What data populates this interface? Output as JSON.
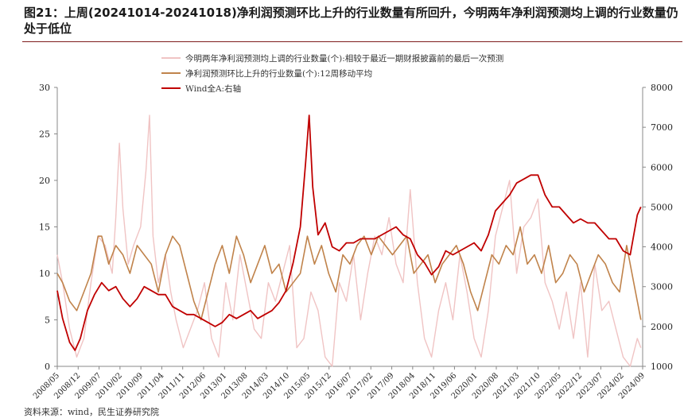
{
  "title": "图21：上周(20241014-20241018)净利润预测环比上升的行业数量有所回升，今明两年净利润预测均上调的行业数量仍处于低位",
  "source": "资料来源：wind，民生证券研究院",
  "chart_data": {
    "type": "line",
    "y_left": {
      "min": 0,
      "max": 30,
      "ticks": [
        0,
        5,
        10,
        15,
        20,
        25,
        30
      ]
    },
    "y_right": {
      "min": 1000,
      "max": 8000,
      "ticks": [
        1000,
        2000,
        3000,
        4000,
        5000,
        6000,
        7000,
        8000
      ]
    },
    "x_ticks": [
      "2008/05",
      "2008/12",
      "2009/07",
      "2010/02",
      "2010/09",
      "2011/04",
      "2011/11",
      "2012/06",
      "2013/01",
      "2013/08",
      "2014/03",
      "2014/10",
      "2015/05",
      "2015/12",
      "2016/07",
      "2017/02",
      "2017/09",
      "2018/04",
      "2018/11",
      "2019/06",
      "2020/01",
      "2020/08",
      "2021/03",
      "2021/10",
      "2022/05",
      "2022/12",
      "2023/07",
      "2024/02",
      "2024/09"
    ],
    "legend_placement": "top-center",
    "series": [
      {
        "name": "今明两年净利润预测均上调的行业数量(个):相较于最近一期财报披露前的最后一次预测",
        "axis": "left",
        "color": "#f0c4c4",
        "x": [
          2008.35,
          2008.5,
          2008.7,
          2008.9,
          2009.1,
          2009.3,
          2009.5,
          2009.7,
          2009.9,
          2010.0,
          2010.1,
          2010.2,
          2010.35,
          2010.5,
          2010.7,
          2010.85,
          2010.95,
          2011.05,
          2011.2,
          2011.4,
          2011.55,
          2011.7,
          2011.9,
          2012.1,
          2012.3,
          2012.5,
          2012.7,
          2012.9,
          2013.1,
          2013.3,
          2013.5,
          2013.7,
          2013.9,
          2014.1,
          2014.3,
          2014.5,
          2014.7,
          2014.9,
          2015.1,
          2015.3,
          2015.5,
          2015.7,
          2015.9,
          2016.1,
          2016.3,
          2016.5,
          2016.7,
          2016.9,
          2017.1,
          2017.3,
          2017.5,
          2017.7,
          2017.9,
          2018.1,
          2018.3,
          2018.5,
          2018.7,
          2018.9,
          2019.1,
          2019.3,
          2019.5,
          2019.7,
          2019.9,
          2020.1,
          2020.3,
          2020.5,
          2020.7,
          2020.9,
          2021.1,
          2021.3,
          2021.5,
          2021.7,
          2021.9,
          2022.1,
          2022.3,
          2022.5,
          2022.7,
          2022.9,
          2023.1,
          2023.3,
          2023.5,
          2023.7,
          2023.9,
          2024.1,
          2024.3,
          2024.5,
          2024.7,
          2024.8
        ],
        "y": [
          12,
          9,
          4,
          1,
          3,
          9,
          14,
          13,
          10,
          16,
          24,
          17,
          11,
          13,
          15,
          21,
          27,
          14,
          9,
          12,
          8,
          5,
          2,
          4,
          6,
          9,
          3,
          1,
          9,
          5,
          12,
          8,
          4,
          3,
          9,
          7,
          10,
          13,
          2,
          3,
          8,
          6,
          1,
          0,
          9,
          7,
          12,
          5,
          10,
          14,
          12,
          16,
          11,
          9,
          19,
          9,
          3,
          1,
          6,
          9,
          5,
          12,
          8,
          3,
          1,
          6,
          14,
          17,
          20,
          10,
          15,
          16,
          18,
          9,
          7,
          4,
          8,
          3,
          9,
          1,
          11,
          6,
          7,
          4,
          1,
          0,
          3,
          2
        ]
      },
      {
        "name": "净利润预测环比上升的行业数量(个):12周移动平均",
        "axis": "left",
        "color": "#c0834b",
        "x": [
          2008.35,
          2008.5,
          2008.7,
          2008.9,
          2009.1,
          2009.3,
          2009.5,
          2009.6,
          2009.8,
          2010.0,
          2010.2,
          2010.4,
          2010.6,
          2010.8,
          2011.0,
          2011.2,
          2011.4,
          2011.6,
          2011.8,
          2012.0,
          2012.2,
          2012.4,
          2012.6,
          2012.8,
          2013.0,
          2013.2,
          2013.4,
          2013.6,
          2013.8,
          2014.0,
          2014.2,
          2014.4,
          2014.6,
          2014.8,
          2015.0,
          2015.2,
          2015.4,
          2015.6,
          2015.8,
          2016.0,
          2016.2,
          2016.4,
          2016.6,
          2016.8,
          2017.0,
          2017.2,
          2017.4,
          2017.6,
          2017.8,
          2018.0,
          2018.2,
          2018.4,
          2018.6,
          2018.8,
          2019.0,
          2019.2,
          2019.4,
          2019.6,
          2019.8,
          2020.0,
          2020.2,
          2020.4,
          2020.6,
          2020.8,
          2021.0,
          2021.2,
          2021.4,
          2021.6,
          2021.8,
          2022.0,
          2022.2,
          2022.4,
          2022.6,
          2022.8,
          2023.0,
          2023.2,
          2023.4,
          2023.6,
          2023.8,
          2024.0,
          2024.2,
          2024.4,
          2024.6,
          2024.8
        ],
        "y": [
          10,
          9,
          7,
          6,
          8,
          10,
          14,
          14,
          11,
          13,
          12,
          10,
          13,
          12,
          11,
          8,
          12,
          14,
          13,
          10,
          7,
          5,
          8,
          11,
          13,
          10,
          14,
          12,
          9,
          11,
          13,
          10,
          11,
          8,
          9,
          10,
          14,
          11,
          13,
          10,
          8,
          12,
          11,
          13,
          14,
          12,
          14,
          13,
          12,
          13,
          14,
          10,
          11,
          12,
          9,
          11,
          12,
          13,
          11,
          8,
          6,
          9,
          12,
          11,
          13,
          12,
          15,
          11,
          12,
          10,
          13,
          9,
          10,
          12,
          11,
          8,
          10,
          12,
          11,
          9,
          8,
          13,
          9,
          5
        ]
      },
      {
        "name": "Wind全A:右轴",
        "axis": "right",
        "color": "#c00000",
        "x": [
          2008.35,
          2008.5,
          2008.7,
          2008.85,
          2009.0,
          2009.2,
          2009.4,
          2009.6,
          2009.8,
          2010.0,
          2010.2,
          2010.4,
          2010.6,
          2010.8,
          2011.0,
          2011.2,
          2011.4,
          2011.6,
          2011.8,
          2012.0,
          2012.2,
          2012.4,
          2012.6,
          2012.8,
          2013.0,
          2013.2,
          2013.4,
          2013.6,
          2013.8,
          2014.0,
          2014.2,
          2014.4,
          2014.6,
          2014.8,
          2015.0,
          2015.2,
          2015.35,
          2015.45,
          2015.55,
          2015.7,
          2015.9,
          2016.1,
          2016.3,
          2016.5,
          2016.7,
          2016.9,
          2017.1,
          2017.3,
          2017.5,
          2017.7,
          2017.9,
          2018.1,
          2018.3,
          2018.5,
          2018.7,
          2018.9,
          2019.1,
          2019.3,
          2019.5,
          2019.7,
          2019.9,
          2020.1,
          2020.3,
          2020.5,
          2020.7,
          2020.9,
          2021.1,
          2021.3,
          2021.5,
          2021.7,
          2021.9,
          2022.1,
          2022.3,
          2022.5,
          2022.7,
          2022.9,
          2023.1,
          2023.3,
          2023.5,
          2023.7,
          2023.9,
          2024.1,
          2024.3,
          2024.5,
          2024.7,
          2024.8
        ],
        "y": [
          2900,
          2200,
          1600,
          1400,
          1700,
          2400,
          2800,
          3100,
          2900,
          3000,
          2700,
          2500,
          2700,
          3000,
          2900,
          2800,
          2800,
          2500,
          2400,
          2300,
          2300,
          2200,
          2100,
          2000,
          2100,
          2300,
          2200,
          2300,
          2400,
          2200,
          2300,
          2400,
          2600,
          2900,
          3600,
          4500,
          6100,
          7300,
          5500,
          4300,
          4600,
          4000,
          3900,
          4100,
          4100,
          4200,
          4200,
          4200,
          4300,
          4400,
          4500,
          4300,
          4200,
          3800,
          3600,
          3300,
          3500,
          3900,
          3800,
          3900,
          4000,
          4100,
          3900,
          4300,
          4900,
          5100,
          5300,
          5600,
          5700,
          5800,
          5800,
          5300,
          5000,
          5000,
          4800,
          4600,
          4700,
          4600,
          4600,
          4400,
          4200,
          4200,
          3900,
          3800,
          4800,
          5000
        ]
      }
    ]
  }
}
